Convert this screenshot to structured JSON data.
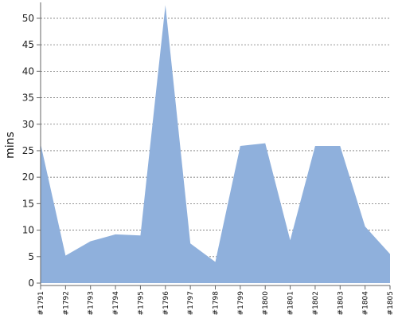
{
  "chart_data": {
    "type": "area",
    "title": "",
    "xlabel": "",
    "ylabel": "mins",
    "categories": [
      "#1791",
      "#1792",
      "#1793",
      "#1794",
      "#1795",
      "#1796",
      "#1797",
      "#1798",
      "#1799",
      "#1800",
      "#1801",
      "#1802",
      "#1803",
      "#1804",
      "#1805"
    ],
    "series": [
      {
        "values": [
          26.3,
          5.2,
          7.9,
          9.2,
          9.0,
          52.5,
          7.5,
          4.0,
          25.9,
          26.4,
          8.1,
          25.9,
          25.9,
          10.7,
          5.5
        ]
      }
    ],
    "ylim": [
      0,
      53
    ],
    "yticks": [
      0,
      5,
      10,
      15,
      20,
      25,
      30,
      35,
      40,
      45,
      50
    ],
    "grid": true,
    "legend": "none",
    "colors": {
      "fill": "#8fb0dc",
      "grid": "#777777",
      "axis": "#666666"
    }
  }
}
